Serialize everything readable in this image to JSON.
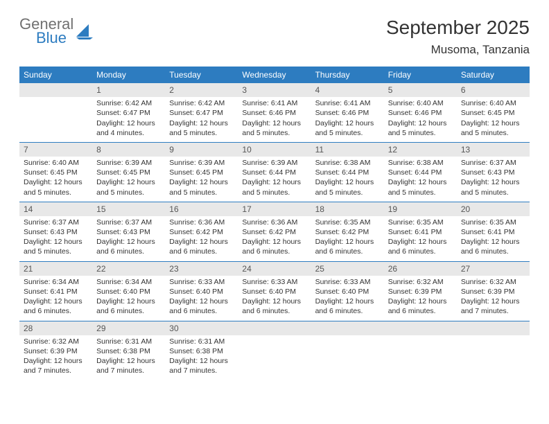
{
  "brand": {
    "word1": "General",
    "word2": "Blue",
    "logo_color": "#2d7cc0",
    "word1_color": "#707070"
  },
  "header": {
    "month_title": "September 2025",
    "location": "Musoma, Tanzania"
  },
  "colors": {
    "header_bg": "#2d7cc0",
    "header_text": "#ffffff",
    "daynum_bg": "#e8e8e8",
    "text": "#333333",
    "rule": "#2d7cc0"
  },
  "day_names": [
    "Sunday",
    "Monday",
    "Tuesday",
    "Wednesday",
    "Thursday",
    "Friday",
    "Saturday"
  ],
  "weeks": [
    [
      {
        "n": "",
        "empty": true
      },
      {
        "n": "1",
        "sunrise": "Sunrise: 6:42 AM",
        "sunset": "Sunset: 6:47 PM",
        "daylight": "Daylight: 12 hours and 4 minutes."
      },
      {
        "n": "2",
        "sunrise": "Sunrise: 6:42 AM",
        "sunset": "Sunset: 6:47 PM",
        "daylight": "Daylight: 12 hours and 5 minutes."
      },
      {
        "n": "3",
        "sunrise": "Sunrise: 6:41 AM",
        "sunset": "Sunset: 6:46 PM",
        "daylight": "Daylight: 12 hours and 5 minutes."
      },
      {
        "n": "4",
        "sunrise": "Sunrise: 6:41 AM",
        "sunset": "Sunset: 6:46 PM",
        "daylight": "Daylight: 12 hours and 5 minutes."
      },
      {
        "n": "5",
        "sunrise": "Sunrise: 6:40 AM",
        "sunset": "Sunset: 6:46 PM",
        "daylight": "Daylight: 12 hours and 5 minutes."
      },
      {
        "n": "6",
        "sunrise": "Sunrise: 6:40 AM",
        "sunset": "Sunset: 6:45 PM",
        "daylight": "Daylight: 12 hours and 5 minutes."
      }
    ],
    [
      {
        "n": "7",
        "sunrise": "Sunrise: 6:40 AM",
        "sunset": "Sunset: 6:45 PM",
        "daylight": "Daylight: 12 hours and 5 minutes."
      },
      {
        "n": "8",
        "sunrise": "Sunrise: 6:39 AM",
        "sunset": "Sunset: 6:45 PM",
        "daylight": "Daylight: 12 hours and 5 minutes."
      },
      {
        "n": "9",
        "sunrise": "Sunrise: 6:39 AM",
        "sunset": "Sunset: 6:45 PM",
        "daylight": "Daylight: 12 hours and 5 minutes."
      },
      {
        "n": "10",
        "sunrise": "Sunrise: 6:39 AM",
        "sunset": "Sunset: 6:44 PM",
        "daylight": "Daylight: 12 hours and 5 minutes."
      },
      {
        "n": "11",
        "sunrise": "Sunrise: 6:38 AM",
        "sunset": "Sunset: 6:44 PM",
        "daylight": "Daylight: 12 hours and 5 minutes."
      },
      {
        "n": "12",
        "sunrise": "Sunrise: 6:38 AM",
        "sunset": "Sunset: 6:44 PM",
        "daylight": "Daylight: 12 hours and 5 minutes."
      },
      {
        "n": "13",
        "sunrise": "Sunrise: 6:37 AM",
        "sunset": "Sunset: 6:43 PM",
        "daylight": "Daylight: 12 hours and 5 minutes."
      }
    ],
    [
      {
        "n": "14",
        "sunrise": "Sunrise: 6:37 AM",
        "sunset": "Sunset: 6:43 PM",
        "daylight": "Daylight: 12 hours and 5 minutes."
      },
      {
        "n": "15",
        "sunrise": "Sunrise: 6:37 AM",
        "sunset": "Sunset: 6:43 PM",
        "daylight": "Daylight: 12 hours and 6 minutes."
      },
      {
        "n": "16",
        "sunrise": "Sunrise: 6:36 AM",
        "sunset": "Sunset: 6:42 PM",
        "daylight": "Daylight: 12 hours and 6 minutes."
      },
      {
        "n": "17",
        "sunrise": "Sunrise: 6:36 AM",
        "sunset": "Sunset: 6:42 PM",
        "daylight": "Daylight: 12 hours and 6 minutes."
      },
      {
        "n": "18",
        "sunrise": "Sunrise: 6:35 AM",
        "sunset": "Sunset: 6:42 PM",
        "daylight": "Daylight: 12 hours and 6 minutes."
      },
      {
        "n": "19",
        "sunrise": "Sunrise: 6:35 AM",
        "sunset": "Sunset: 6:41 PM",
        "daylight": "Daylight: 12 hours and 6 minutes."
      },
      {
        "n": "20",
        "sunrise": "Sunrise: 6:35 AM",
        "sunset": "Sunset: 6:41 PM",
        "daylight": "Daylight: 12 hours and 6 minutes."
      }
    ],
    [
      {
        "n": "21",
        "sunrise": "Sunrise: 6:34 AM",
        "sunset": "Sunset: 6:41 PM",
        "daylight": "Daylight: 12 hours and 6 minutes."
      },
      {
        "n": "22",
        "sunrise": "Sunrise: 6:34 AM",
        "sunset": "Sunset: 6:40 PM",
        "daylight": "Daylight: 12 hours and 6 minutes."
      },
      {
        "n": "23",
        "sunrise": "Sunrise: 6:33 AM",
        "sunset": "Sunset: 6:40 PM",
        "daylight": "Daylight: 12 hours and 6 minutes."
      },
      {
        "n": "24",
        "sunrise": "Sunrise: 6:33 AM",
        "sunset": "Sunset: 6:40 PM",
        "daylight": "Daylight: 12 hours and 6 minutes."
      },
      {
        "n": "25",
        "sunrise": "Sunrise: 6:33 AM",
        "sunset": "Sunset: 6:40 PM",
        "daylight": "Daylight: 12 hours and 6 minutes."
      },
      {
        "n": "26",
        "sunrise": "Sunrise: 6:32 AM",
        "sunset": "Sunset: 6:39 PM",
        "daylight": "Daylight: 12 hours and 6 minutes."
      },
      {
        "n": "27",
        "sunrise": "Sunrise: 6:32 AM",
        "sunset": "Sunset: 6:39 PM",
        "daylight": "Daylight: 12 hours and 7 minutes."
      }
    ],
    [
      {
        "n": "28",
        "sunrise": "Sunrise: 6:32 AM",
        "sunset": "Sunset: 6:39 PM",
        "daylight": "Daylight: 12 hours and 7 minutes."
      },
      {
        "n": "29",
        "sunrise": "Sunrise: 6:31 AM",
        "sunset": "Sunset: 6:38 PM",
        "daylight": "Daylight: 12 hours and 7 minutes."
      },
      {
        "n": "30",
        "sunrise": "Sunrise: 6:31 AM",
        "sunset": "Sunset: 6:38 PM",
        "daylight": "Daylight: 12 hours and 7 minutes."
      },
      {
        "n": "",
        "empty": true
      },
      {
        "n": "",
        "empty": true
      },
      {
        "n": "",
        "empty": true
      },
      {
        "n": "",
        "empty": true
      }
    ]
  ]
}
